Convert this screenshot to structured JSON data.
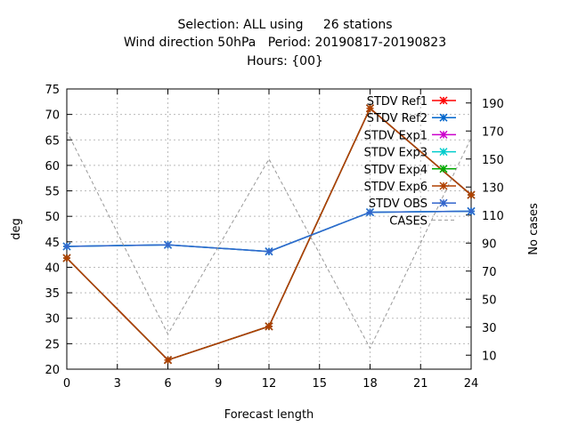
{
  "header": {
    "line1": "Selection: ALL using     26 stations",
    "line2": "Wind direction 50hPa   Period: 20190817-20190823",
    "line3": "Hours: {00}"
  },
  "chart_data": {
    "type": "line",
    "xlabel": "Forecast length",
    "ylabel": "deg",
    "y2label": "No cases",
    "xlim": [
      0,
      24
    ],
    "ylim": [
      20,
      75
    ],
    "y2lim": [
      0,
      200
    ],
    "xticks": [
      0,
      3,
      6,
      9,
      12,
      15,
      18,
      21,
      24
    ],
    "yticks": [
      20,
      25,
      30,
      35,
      40,
      45,
      50,
      55,
      60,
      65,
      70,
      75
    ],
    "y2ticks": [
      10,
      30,
      50,
      70,
      90,
      110,
      130,
      150,
      170,
      190
    ],
    "grid": true,
    "legend_position": "top-right",
    "series": [
      {
        "name": "STDV Ref1",
        "color": "#ff0000",
        "x": [
          0,
          6,
          12,
          18,
          24
        ],
        "y": [
          41.8,
          21.8,
          28.4,
          71.2,
          54.2
        ],
        "axis": "y"
      },
      {
        "name": "STDV Ref2",
        "color": "#0066cc",
        "x": [
          0,
          6,
          12,
          18,
          24
        ],
        "y": [
          44.1,
          44.4,
          43.1,
          50.8,
          51.0
        ],
        "axis": "y"
      },
      {
        "name": "STDV Exp1",
        "color": "#cc00cc",
        "x": [
          0,
          6,
          12,
          18,
          24
        ],
        "y": [
          41.8,
          21.8,
          28.4,
          71.2,
          54.2
        ],
        "axis": "y"
      },
      {
        "name": "STDV Exp3",
        "color": "#00cccc",
        "x": [
          0,
          6,
          12,
          18,
          24
        ],
        "y": [
          44.1,
          44.4,
          43.1,
          50.8,
          51.0
        ],
        "axis": "y"
      },
      {
        "name": "STDV Exp4",
        "color": "#00aa00",
        "x": [
          0,
          6,
          12,
          18,
          24
        ],
        "y": [
          41.8,
          21.8,
          28.4,
          71.2,
          54.2
        ],
        "axis": "y"
      },
      {
        "name": "STDV Exp6",
        "color": "#b04000",
        "x": [
          0,
          6,
          12,
          18,
          24
        ],
        "y": [
          41.8,
          21.8,
          28.4,
          71.2,
          54.2
        ],
        "axis": "y"
      },
      {
        "name": "STDV OBS",
        "color": "#3366cc",
        "x": [
          0,
          6,
          12,
          18,
          24
        ],
        "y": [
          44.1,
          44.4,
          43.1,
          50.8,
          51.0
        ],
        "axis": "y"
      },
      {
        "name": "CASES",
        "color": "#999999",
        "dashed": true,
        "x": [
          0,
          6,
          12,
          18,
          24
        ],
        "y": [
          170,
          25,
          150,
          15,
          165
        ],
        "axis": "y2"
      }
    ]
  }
}
